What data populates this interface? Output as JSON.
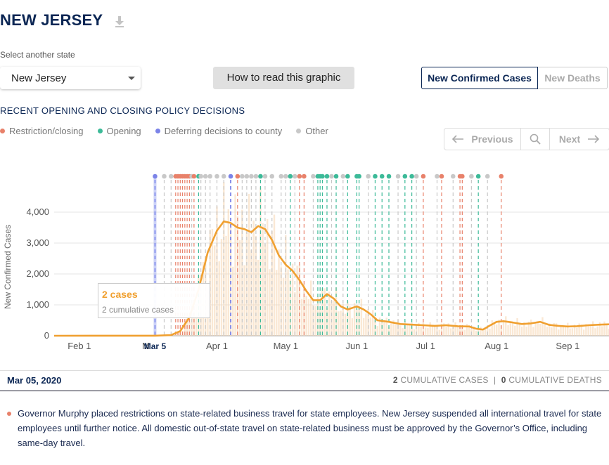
{
  "header": {
    "title": "NEW JERSEY",
    "download_icon": "download-icon"
  },
  "state_picker": {
    "label": "Select another state",
    "value": "New Jersey"
  },
  "how_button": "How to read this graphic",
  "toggle": {
    "cases": "New Confirmed Cases",
    "deaths": "New Deaths",
    "active": "cases"
  },
  "policy": {
    "heading": "RECENT OPENING AND CLOSING POLICY DECISIONS",
    "legend": [
      {
        "label": "Restriction/closing",
        "color": "#e8816a"
      },
      {
        "label": "Opening",
        "color": "#3cba98"
      },
      {
        "label": "Deferring decisions to county",
        "color": "#7b83e8"
      },
      {
        "label": "Other",
        "color": "#c8c8c8"
      }
    ]
  },
  "pager": {
    "previous": "Previous",
    "next": "Next"
  },
  "tooltip": {
    "cases": "2 cases",
    "cumulative": "2 cumulative cases"
  },
  "footer": {
    "date": "Mar 05, 2020",
    "cum_cases_value": "2",
    "cum_cases_label": "CUMULATIVE CASES",
    "separator": "|",
    "cum_deaths_value": "0",
    "cum_deaths_label": "CUMULATIVE DEATHS"
  },
  "description": "Governor Murphy placed restrictions on state-related business travel for state employees. New Jersey suspended all international travel for state employees until further notice. All domestic out-of-state travel on state-related business must be approved by the Governor’s Office, including same-day travel.",
  "chart_data": {
    "type": "line",
    "ylabel": "New Confirmed Cases",
    "ylim": [
      0,
      4500
    ],
    "yticks": [
      0,
      1000,
      2000,
      3000,
      4000
    ],
    "ytick_labels": [
      "0",
      "1,000",
      "2,000",
      "3,000",
      "4,000"
    ],
    "xlim": [
      "2020-01-21",
      "2020-09-19"
    ],
    "xticks": [
      {
        "date": "2020-02-01",
        "label": "Feb 1"
      },
      {
        "date": "2020-03-01",
        "label": "M"
      },
      {
        "date": "2020-04-01",
        "label": "Apr 1"
      },
      {
        "date": "2020-05-01",
        "label": "May 1"
      },
      {
        "date": "2020-06-01",
        "label": "Jun 1"
      },
      {
        "date": "2020-07-01",
        "label": "Jul 1"
      },
      {
        "date": "2020-08-01",
        "label": "Aug 1"
      },
      {
        "date": "2020-09-01",
        "label": "Sep 1"
      }
    ],
    "highlight": {
      "date": "2020-03-05",
      "label": "Mar 5"
    },
    "series": [
      {
        "type": "moving-average-line",
        "color": "#f0a030",
        "points": [
          [
            "2020-01-21",
            0
          ],
          [
            "2020-03-05",
            2
          ],
          [
            "2020-03-12",
            20
          ],
          [
            "2020-03-16",
            150
          ],
          [
            "2020-03-20",
            600
          ],
          [
            "2020-03-24",
            1500
          ],
          [
            "2020-03-28",
            2700
          ],
          [
            "2020-04-01",
            3400
          ],
          [
            "2020-04-04",
            3700
          ],
          [
            "2020-04-07",
            3650
          ],
          [
            "2020-04-10",
            3500
          ],
          [
            "2020-04-13",
            3450
          ],
          [
            "2020-04-16",
            3350
          ],
          [
            "2020-04-19",
            3550
          ],
          [
            "2020-04-22",
            3450
          ],
          [
            "2020-04-25",
            3100
          ],
          [
            "2020-04-28",
            2600
          ],
          [
            "2020-05-01",
            2300
          ],
          [
            "2020-05-04",
            2100
          ],
          [
            "2020-05-07",
            1800
          ],
          [
            "2020-05-10",
            1450
          ],
          [
            "2020-05-13",
            1150
          ],
          [
            "2020-05-16",
            1150
          ],
          [
            "2020-05-19",
            1350
          ],
          [
            "2020-05-22",
            1200
          ],
          [
            "2020-05-25",
            950
          ],
          [
            "2020-05-28",
            850
          ],
          [
            "2020-06-01",
            950
          ],
          [
            "2020-06-04",
            850
          ],
          [
            "2020-06-07",
            700
          ],
          [
            "2020-06-10",
            500
          ],
          [
            "2020-06-15",
            450
          ],
          [
            "2020-06-20",
            380
          ],
          [
            "2020-06-25",
            360
          ],
          [
            "2020-06-30",
            340
          ],
          [
            "2020-07-05",
            320
          ],
          [
            "2020-07-10",
            340
          ],
          [
            "2020-07-15",
            310
          ],
          [
            "2020-07-20",
            300
          ],
          [
            "2020-07-23",
            230
          ],
          [
            "2020-07-26",
            200
          ],
          [
            "2020-07-29",
            330
          ],
          [
            "2020-08-01",
            450
          ],
          [
            "2020-08-04",
            470
          ],
          [
            "2020-08-08",
            430
          ],
          [
            "2020-08-12",
            380
          ],
          [
            "2020-08-16",
            400
          ],
          [
            "2020-08-20",
            450
          ],
          [
            "2020-08-24",
            350
          ],
          [
            "2020-08-28",
            320
          ],
          [
            "2020-09-01",
            300
          ],
          [
            "2020-09-05",
            310
          ],
          [
            "2020-09-10",
            340
          ],
          [
            "2020-09-15",
            360
          ],
          [
            "2020-09-19",
            370
          ]
        ]
      }
    ],
    "policy_markers": [
      {
        "date": "2020-03-05",
        "kind": "county"
      },
      {
        "date": "2020-03-09",
        "kind": "other"
      },
      {
        "date": "2020-03-12",
        "kind": "other"
      },
      {
        "date": "2020-03-14",
        "kind": "restriction"
      },
      {
        "date": "2020-03-15",
        "kind": "restriction"
      },
      {
        "date": "2020-03-16",
        "kind": "restriction"
      },
      {
        "date": "2020-03-17",
        "kind": "restriction"
      },
      {
        "date": "2020-03-18",
        "kind": "restriction"
      },
      {
        "date": "2020-03-19",
        "kind": "restriction"
      },
      {
        "date": "2020-03-20",
        "kind": "restriction"
      },
      {
        "date": "2020-03-21",
        "kind": "other"
      },
      {
        "date": "2020-03-22",
        "kind": "restriction"
      },
      {
        "date": "2020-03-24",
        "kind": "opening"
      },
      {
        "date": "2020-03-25",
        "kind": "other"
      },
      {
        "date": "2020-03-27",
        "kind": "other"
      },
      {
        "date": "2020-03-29",
        "kind": "other"
      },
      {
        "date": "2020-04-01",
        "kind": "other"
      },
      {
        "date": "2020-04-04",
        "kind": "other"
      },
      {
        "date": "2020-04-07",
        "kind": "county"
      },
      {
        "date": "2020-04-10",
        "kind": "restriction"
      },
      {
        "date": "2020-04-12",
        "kind": "other"
      },
      {
        "date": "2020-04-14",
        "kind": "other"
      },
      {
        "date": "2020-04-16",
        "kind": "other"
      },
      {
        "date": "2020-04-18",
        "kind": "other"
      },
      {
        "date": "2020-04-20",
        "kind": "opening"
      },
      {
        "date": "2020-04-22",
        "kind": "other"
      },
      {
        "date": "2020-04-25",
        "kind": "other"
      },
      {
        "date": "2020-04-29",
        "kind": "other"
      },
      {
        "date": "2020-05-01",
        "kind": "other"
      },
      {
        "date": "2020-05-03",
        "kind": "opening"
      },
      {
        "date": "2020-05-05",
        "kind": "other"
      },
      {
        "date": "2020-05-07",
        "kind": "restriction"
      },
      {
        "date": "2020-05-09",
        "kind": "restriction"
      },
      {
        "date": "2020-05-13",
        "kind": "other"
      },
      {
        "date": "2020-05-15",
        "kind": "opening"
      },
      {
        "date": "2020-05-16",
        "kind": "opening"
      },
      {
        "date": "2020-05-17",
        "kind": "opening"
      },
      {
        "date": "2020-05-19",
        "kind": "opening"
      },
      {
        "date": "2020-05-21",
        "kind": "other"
      },
      {
        "date": "2020-05-23",
        "kind": "opening"
      },
      {
        "date": "2020-05-26",
        "kind": "other"
      },
      {
        "date": "2020-05-28",
        "kind": "opening"
      },
      {
        "date": "2020-06-01",
        "kind": "opening"
      },
      {
        "date": "2020-06-02",
        "kind": "opening"
      },
      {
        "date": "2020-06-06",
        "kind": "other"
      },
      {
        "date": "2020-06-09",
        "kind": "opening"
      },
      {
        "date": "2020-06-12",
        "kind": "opening"
      },
      {
        "date": "2020-06-15",
        "kind": "opening"
      },
      {
        "date": "2020-06-19",
        "kind": "other"
      },
      {
        "date": "2020-06-22",
        "kind": "opening"
      },
      {
        "date": "2020-06-25",
        "kind": "opening"
      },
      {
        "date": "2020-06-27",
        "kind": "other"
      },
      {
        "date": "2020-06-30",
        "kind": "restriction"
      },
      {
        "date": "2020-07-06",
        "kind": "other"
      },
      {
        "date": "2020-07-08",
        "kind": "restriction"
      },
      {
        "date": "2020-07-13",
        "kind": "other"
      },
      {
        "date": "2020-07-16",
        "kind": "restriction"
      },
      {
        "date": "2020-07-17",
        "kind": "restriction"
      },
      {
        "date": "2020-07-21",
        "kind": "other"
      },
      {
        "date": "2020-07-24",
        "kind": "opening"
      },
      {
        "date": "2020-07-28",
        "kind": "other"
      },
      {
        "date": "2020-08-03",
        "kind": "restriction"
      }
    ],
    "grid": true
  }
}
